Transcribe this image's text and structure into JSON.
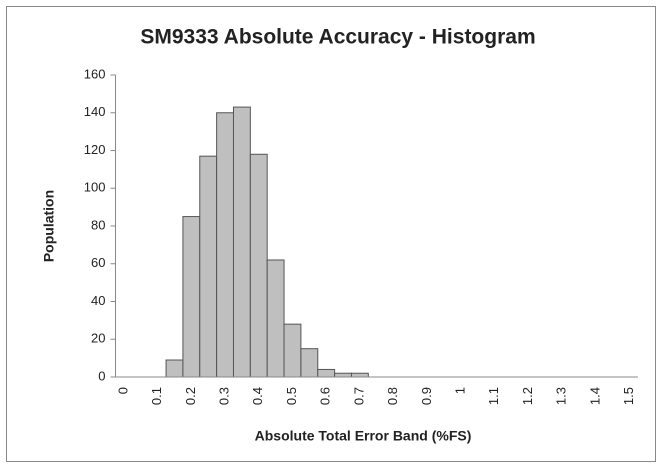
{
  "chart_data": {
    "type": "bar",
    "title": "SM9333 Absolute Accuracy - Histogram",
    "x_label": "Absolute Total Error Band (%FS)",
    "y_label": "Population",
    "categories": [
      "0",
      null,
      "0.1",
      null,
      "0.2",
      null,
      "0.3",
      null,
      "0.4",
      null,
      "0.5",
      null,
      "0.6",
      null,
      "0.7",
      null,
      "0.8",
      null,
      "0.9",
      null,
      "1",
      null,
      "1.1",
      null,
      "1.2",
      null,
      "1.3",
      null,
      "1.4",
      null,
      "1.5"
    ],
    "values": [
      0,
      0,
      0,
      9,
      85,
      117,
      140,
      143,
      118,
      62,
      28,
      15,
      4,
      2,
      2,
      0,
      0,
      0,
      0,
      0,
      0,
      0,
      0,
      0,
      0,
      0,
      0,
      0,
      0,
      0,
      0
    ],
    "color": "#bfbfbf",
    "ylim": [
      0,
      160
    ],
    "yticks": [
      0,
      20,
      40,
      60,
      80,
      100,
      120,
      140,
      160
    ],
    "grid": false
  }
}
